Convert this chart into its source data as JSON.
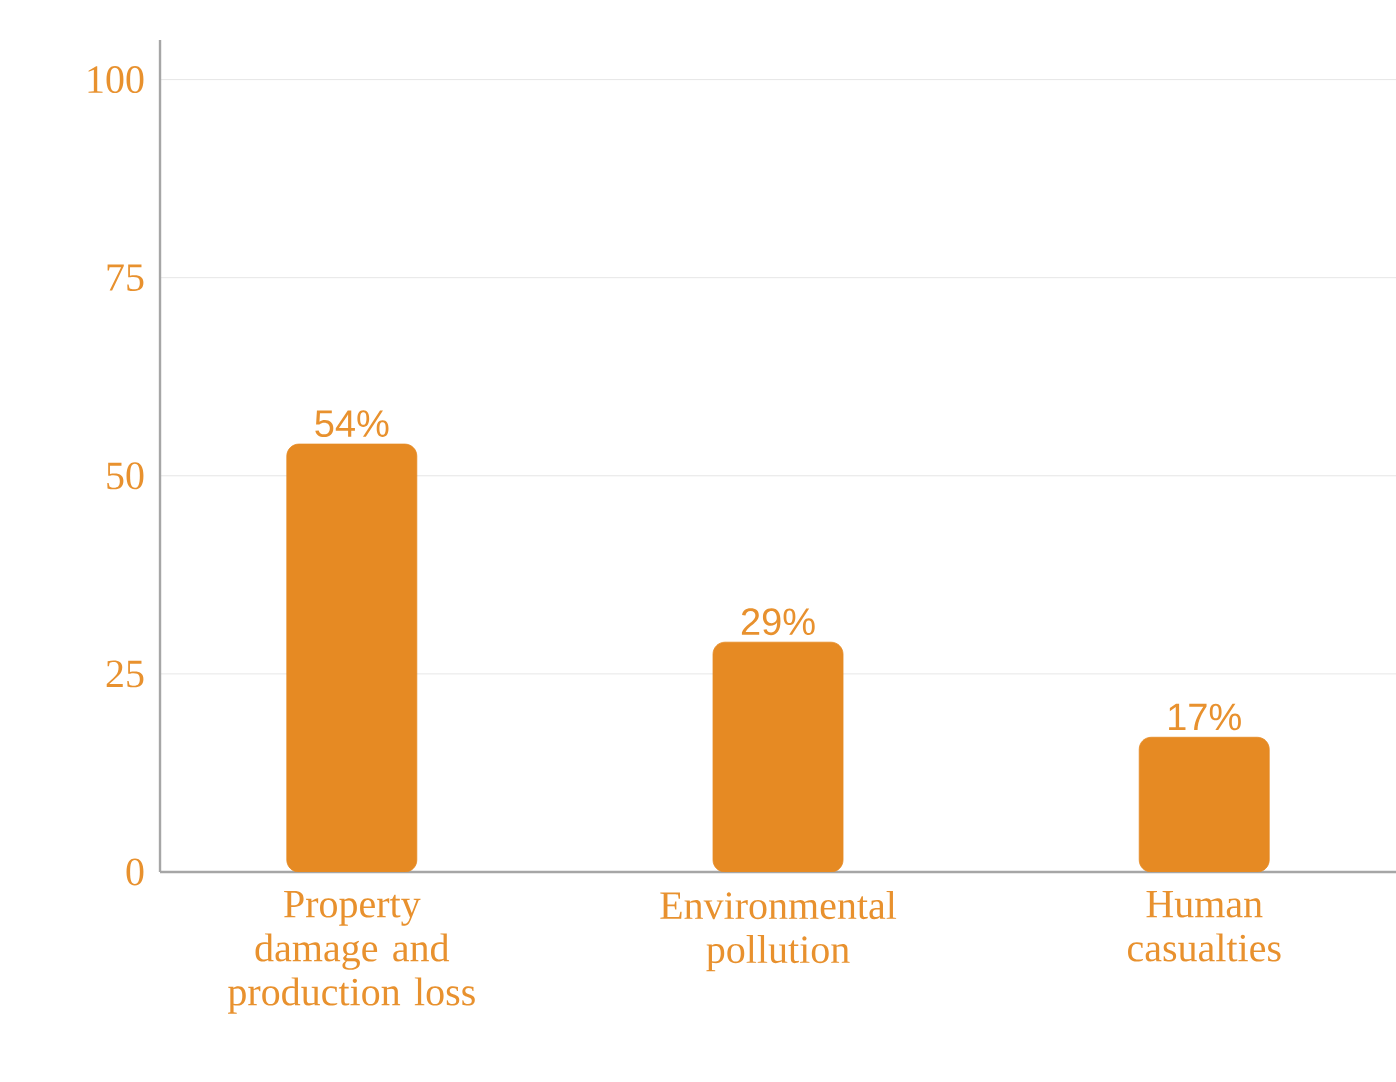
{
  "chart_data": {
    "type": "bar",
    "categories": [
      "Property damage and production loss",
      "Environmental pollution",
      "Human casualties"
    ],
    "values": [
      54,
      29,
      17
    ],
    "value_labels": [
      "54%",
      "29%",
      "17%"
    ],
    "color": "#e68a23",
    "ylim": [
      0,
      105
    ],
    "yticks": [
      0,
      25,
      50,
      75,
      100
    ],
    "grid": "y"
  }
}
